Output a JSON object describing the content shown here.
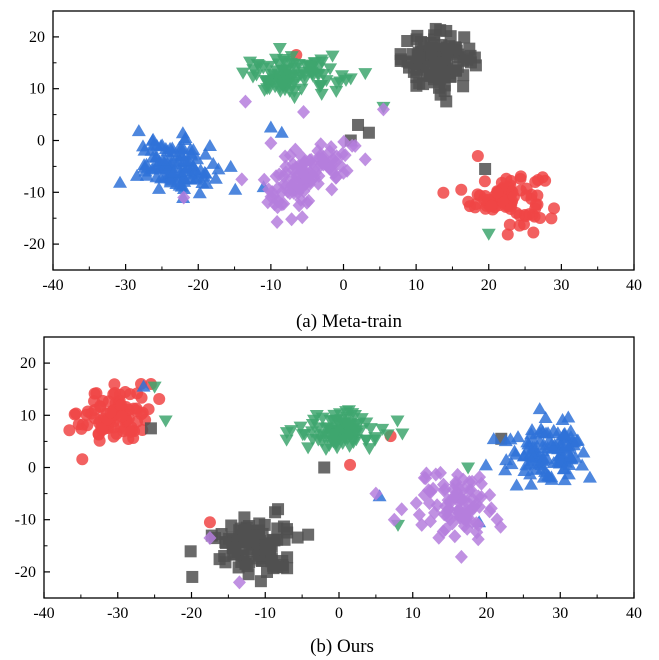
{
  "chart_data": [
    {
      "type": "scatter",
      "caption": "(a) Meta-train",
      "xlim": [
        -40,
        40
      ],
      "ylim": [
        -25,
        25
      ],
      "x_ticks": [
        -40,
        -30,
        -20,
        -10,
        0,
        10,
        20,
        30,
        40
      ],
      "y_ticks": [
        -20,
        -10,
        0,
        10,
        20
      ],
      "grid": false,
      "legend": "none",
      "series": [
        {
          "marker": "circle",
          "color": "#f04545",
          "clusters": [
            {
              "cx": 22.5,
              "cy": -11,
              "sx": 2.5,
              "sy": 2.5,
              "n": 90
            }
          ],
          "extra": [
            [
              -6.5,
              16.5
            ],
            [
              18.5,
              -3
            ]
          ]
        },
        {
          "marker": "square",
          "color": "#505050",
          "clusters": [
            {
              "cx": 13,
              "cy": 15.5,
              "sx": 2.5,
              "sy": 2.6,
              "n": 110
            }
          ],
          "extra": [
            [
              3.5,
              1.5
            ],
            [
              2,
              3
            ],
            [
              1,
              0
            ],
            [
              19.5,
              -5.5
            ]
          ]
        },
        {
          "marker": "triangle-down",
          "color": "#3ea66e",
          "clusters": [
            {
              "cx": -7,
              "cy": 12.5,
              "sx": 3.2,
              "sy": 1.8,
              "n": 95
            }
          ],
          "extra": [
            [
              1,
              12
            ],
            [
              3,
              13
            ],
            [
              -3,
              9
            ],
            [
              5.5,
              6.5
            ],
            [
              20,
              -18
            ]
          ]
        },
        {
          "marker": "triangle-up",
          "color": "#2f72d8",
          "clusters": [
            {
              "cx": -23,
              "cy": -5,
              "sx": 2.7,
              "sy": 2.5,
              "n": 110
            }
          ],
          "extra": [
            [
              -10,
              2.5
            ],
            [
              -8.5,
              1.5
            ],
            [
              -11,
              -9
            ]
          ]
        },
        {
          "marker": "diamond",
          "color": "#b57edd",
          "clusters": [
            {
              "cx": -7,
              "cy": -9,
              "sx": 2,
              "sy": 3,
              "n": 60
            },
            {
              "cx": -3,
              "cy": -4,
              "sx": 2.4,
              "sy": 2.2,
              "n": 50
            }
          ],
          "extra": [
            [
              -13.5,
              7.5
            ],
            [
              -5.5,
              5.5
            ],
            [
              -14,
              -7.5
            ],
            [
              -22,
              -11
            ],
            [
              5.5,
              6
            ],
            [
              -10,
              -0.5
            ]
          ]
        }
      ]
    },
    {
      "type": "scatter",
      "caption": "(b) Ours",
      "xlim": [
        -40,
        40
      ],
      "ylim": [
        -25,
        25
      ],
      "x_ticks": [
        -40,
        -30,
        -20,
        -10,
        0,
        10,
        20,
        30,
        40
      ],
      "y_ticks": [
        -20,
        -10,
        0,
        10,
        20
      ],
      "grid": false,
      "legend": "none",
      "series": [
        {
          "marker": "circle",
          "color": "#f04545",
          "clusters": [
            {
              "cx": -30.5,
              "cy": 10,
              "sx": 2.4,
              "sy": 2.8,
              "n": 95
            }
          ],
          "extra": [
            [
              -17.5,
              -10.5
            ],
            [
              7,
              6
            ],
            [
              1.5,
              0.5
            ],
            [
              -25.5,
              16
            ]
          ]
        },
        {
          "marker": "square",
          "color": "#505050",
          "clusters": [
            {
              "cx": -11.5,
              "cy": -15,
              "sx": 2.6,
              "sy": 2.6,
              "n": 110
            }
          ],
          "extra": [
            [
              22,
              5.5
            ],
            [
              -2,
              0
            ],
            [
              -25.5,
              7.5
            ]
          ]
        },
        {
          "marker": "triangle-down",
          "color": "#3ea66e",
          "clusters": [
            {
              "cx": 0,
              "cy": 7,
              "sx": 3.2,
              "sy": 2.0,
              "n": 95
            }
          ],
          "extra": [
            [
              -23.5,
              9
            ],
            [
              8,
              -11
            ],
            [
              17.5,
              0
            ],
            [
              -25,
              15.5
            ]
          ]
        },
        {
          "marker": "triangle-up",
          "color": "#2f72d8",
          "clusters": [
            {
              "cx": 28.5,
              "cy": 3,
              "sx": 2.8,
              "sy": 2.6,
              "n": 110
            }
          ],
          "extra": [
            [
              19,
              -10.5
            ],
            [
              5.5,
              -5.5
            ],
            [
              -26.5,
              15.5
            ]
          ]
        },
        {
          "marker": "diamond",
          "color": "#b57edd",
          "clusters": [
            {
              "cx": 15.5,
              "cy": -7,
              "sx": 2.5,
              "sy": 3.2,
              "n": 95
            }
          ],
          "extra": [
            [
              -17.5,
              -13.5
            ],
            [
              -13.5,
              -22
            ],
            [
              8.5,
              -8
            ],
            [
              7.5,
              -10
            ],
            [
              5,
              -5
            ]
          ]
        }
      ]
    }
  ]
}
